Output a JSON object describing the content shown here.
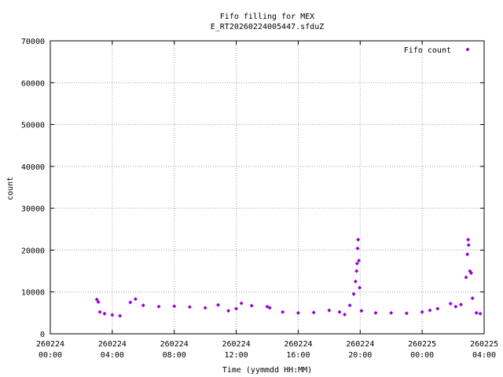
{
  "chart_data": {
    "type": "scatter",
    "title": "Fifo filling for MEX",
    "subtitle": "E_RT20260224005447.sfduZ",
    "xlabel": "Time (yymmdd HH:MM)",
    "ylabel": "count",
    "xlim": [
      "2026-02-24 00:00",
      "2026-02-25 04:00"
    ],
    "ylim": [
      0,
      70000
    ],
    "grid": true,
    "legend_position": "top-right",
    "marker_color": "#9400d3",
    "x_ticks": [
      {
        "line1": "260224",
        "line2": "00:00"
      },
      {
        "line1": "260224",
        "line2": "04:00"
      },
      {
        "line1": "260224",
        "line2": "08:00"
      },
      {
        "line1": "260224",
        "line2": "12:00"
      },
      {
        "line1": "260224",
        "line2": "16:00"
      },
      {
        "line1": "260224",
        "line2": "20:00"
      },
      {
        "line1": "260225",
        "line2": "00:00"
      },
      {
        "line1": "260225",
        "line2": "04:00"
      }
    ],
    "y_ticks": [
      "0",
      "10000",
      "20000",
      "30000",
      "40000",
      "50000",
      "60000",
      "70000"
    ],
    "series": [
      {
        "name": "Fifo count",
        "points": [
          [
            "2026-02-24 03:00",
            8200
          ],
          [
            "2026-02-24 03:06",
            7600
          ],
          [
            "2026-02-24 03:12",
            5200
          ],
          [
            "2026-02-24 03:30",
            4800
          ],
          [
            "2026-02-24 04:00",
            4500
          ],
          [
            "2026-02-24 04:30",
            4300
          ],
          [
            "2026-02-24 05:10",
            7500
          ],
          [
            "2026-02-24 05:30",
            8300
          ],
          [
            "2026-02-24 06:00",
            6800
          ],
          [
            "2026-02-24 07:00",
            6500
          ],
          [
            "2026-02-24 08:00",
            6600
          ],
          [
            "2026-02-24 09:00",
            6400
          ],
          [
            "2026-02-24 10:00",
            6200
          ],
          [
            "2026-02-24 10:50",
            6900
          ],
          [
            "2026-02-24 11:30",
            5500
          ],
          [
            "2026-02-24 12:00",
            6000
          ],
          [
            "2026-02-24 12:20",
            7300
          ],
          [
            "2026-02-24 13:00",
            6700
          ],
          [
            "2026-02-24 14:00",
            6500
          ],
          [
            "2026-02-24 14:10",
            6200
          ],
          [
            "2026-02-24 15:00",
            5200
          ],
          [
            "2026-02-24 16:00",
            5000
          ],
          [
            "2026-02-24 17:00",
            5100
          ],
          [
            "2026-02-24 18:00",
            5600
          ],
          [
            "2026-02-24 18:40",
            5200
          ],
          [
            "2026-02-24 19:00",
            4600
          ],
          [
            "2026-02-24 19:20",
            6800
          ],
          [
            "2026-02-24 19:35",
            9500
          ],
          [
            "2026-02-24 19:42",
            12500
          ],
          [
            "2026-02-24 19:46",
            15000
          ],
          [
            "2026-02-24 19:48",
            16800
          ],
          [
            "2026-02-24 19:50",
            20400
          ],
          [
            "2026-02-24 19:52",
            22500
          ],
          [
            "2026-02-24 19:55",
            17500
          ],
          [
            "2026-02-24 19:58",
            11000
          ],
          [
            "2026-02-24 20:05",
            5500
          ],
          [
            "2026-02-24 21:00",
            5000
          ],
          [
            "2026-02-24 22:00",
            5000
          ],
          [
            "2026-02-24 23:00",
            4900
          ],
          [
            "2026-02-25 00:00",
            5200
          ],
          [
            "2026-02-25 00:30",
            5600
          ],
          [
            "2026-02-25 01:00",
            6000
          ],
          [
            "2026-02-25 01:50",
            7200
          ],
          [
            "2026-02-25 02:10",
            6500
          ],
          [
            "2026-02-25 02:30",
            7000
          ],
          [
            "2026-02-25 02:50",
            13500
          ],
          [
            "2026-02-25 02:55",
            19000
          ],
          [
            "2026-02-25 02:58",
            22500
          ],
          [
            "2026-02-25 03:00",
            21200
          ],
          [
            "2026-02-25 03:05",
            15000
          ],
          [
            "2026-02-25 03:10",
            14500
          ],
          [
            "2026-02-25 03:15",
            8500
          ],
          [
            "2026-02-25 03:30",
            5000
          ],
          [
            "2026-02-25 03:45",
            4800
          ]
        ]
      }
    ]
  }
}
